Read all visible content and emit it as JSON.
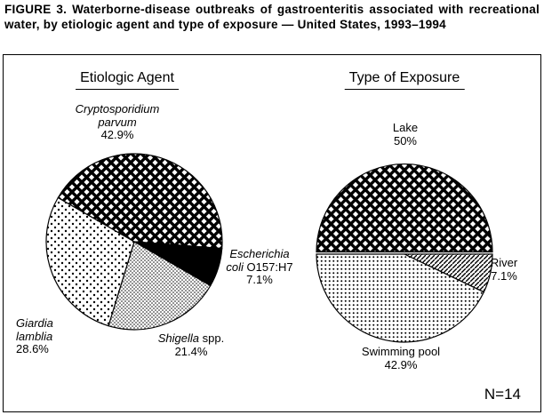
{
  "figure": {
    "title": "FIGURE 3. Waterborne-disease outbreaks of gastroenteritis associated with recreational water, by etiologic agent and type of exposure — United States, 1993–1994",
    "n_label": "N=14"
  },
  "charts": {
    "etiologic": {
      "heading": "Etiologic Agent",
      "labels": {
        "crypto": {
          "line1": "Cryptosporidium",
          "line2": "parvum",
          "pct": "42.9%"
        },
        "ecoli": {
          "line1": "Escherichia",
          "line2_italic": "coli",
          "line2_roman": "O157:H7",
          "pct": "7.1%"
        },
        "shigella": {
          "italic": "Shigella",
          "roman": "spp.",
          "pct": "21.4%"
        },
        "giardia": {
          "line1": "Giardia",
          "line2": "lamblia",
          "pct": "28.6%"
        }
      }
    },
    "exposure": {
      "heading": "Type of Exposure",
      "labels": {
        "lake": {
          "line1": "Lake",
          "pct": "50%"
        },
        "river": {
          "line1": "River",
          "pct": "7.1%"
        },
        "pool": {
          "line1": "Swimming pool",
          "pct": "42.9%"
        }
      }
    }
  },
  "chart_data": [
    {
      "type": "pie",
      "title": "Etiologic Agent",
      "units": "%",
      "n": 14,
      "direction": "clockwise",
      "start_angle_deg": 300,
      "slices": [
        {
          "label": "Cryptosporidium parvum",
          "value_pct": 42.9,
          "fill": "crosshatch"
        },
        {
          "label": "Escherichia coli O157:H7",
          "value_pct": 7.1,
          "fill": "solid-black"
        },
        {
          "label": "Shigella spp.",
          "value_pct": 21.4,
          "fill": "fine-dots"
        },
        {
          "label": "Giardia lamblia",
          "value_pct": 28.6,
          "fill": "dots"
        }
      ]
    },
    {
      "type": "pie",
      "title": "Type of Exposure",
      "units": "%",
      "n": 14,
      "direction": "clockwise",
      "start_angle_deg": 270,
      "slices": [
        {
          "label": "Lake",
          "value_pct": 50,
          "fill": "crosshatch"
        },
        {
          "label": "River",
          "value_pct": 7.1,
          "fill": "diagonal-lines"
        },
        {
          "label": "Swimming pool",
          "value_pct": 42.9,
          "fill": "grid-dots"
        }
      ]
    }
  ]
}
